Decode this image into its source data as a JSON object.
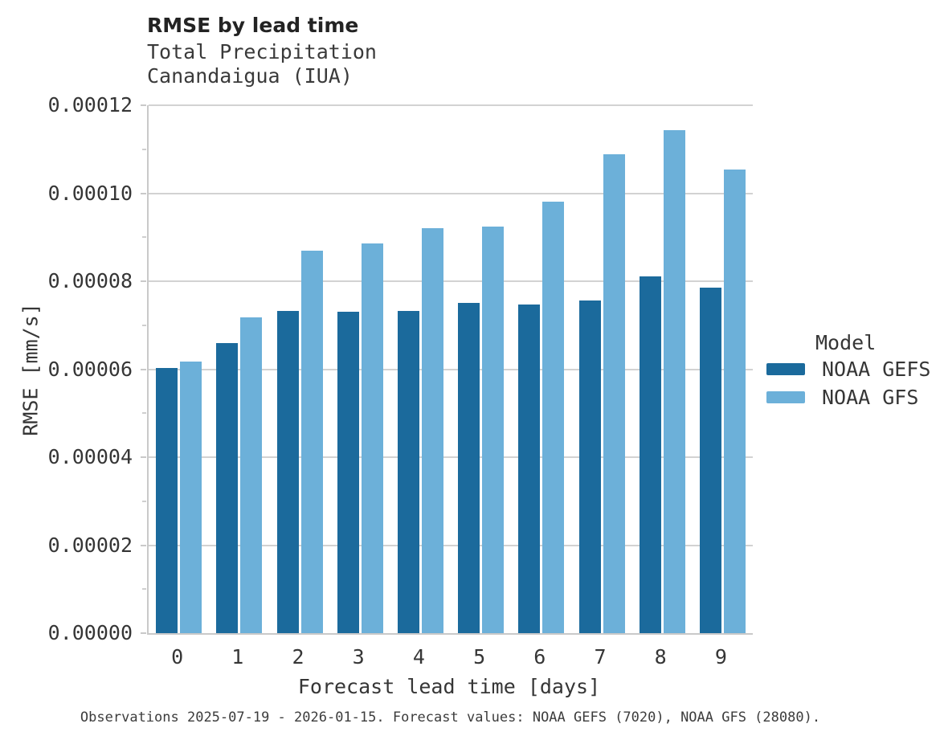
{
  "figure": {
    "title": "RMSE by lead time",
    "subtitle_line1": "Total Precipitation",
    "subtitle_line2": "Canandaigua (IUA)",
    "caption": "Observations 2025-07-19 - 2026-01-15. Forecast values: NOAA GEFS (7020), NOAA GFS (28080)."
  },
  "legend": {
    "title": "Model",
    "entries": [
      {
        "label": "NOAA GEFS",
        "color": "#1b6a9c"
      },
      {
        "label": "NOAA GFS",
        "color": "#6cb0d9"
      }
    ]
  },
  "colors": {
    "noaa_gefs": "#1b6a9c",
    "noaa_gfs": "#6cb0d9",
    "gridline": "#d2d2d2",
    "axis_line": "#c9c9c9",
    "text": "#363636",
    "title_text": "#232323"
  },
  "chart_data": {
    "type": "bar",
    "title": "RMSE by lead time",
    "subtitle": "Total Precipitation\nCanandaigua (IUA)",
    "xlabel": "Forecast lead time [days]",
    "ylabel": "RMSE [mm/s]",
    "categories": [
      "0",
      "1",
      "2",
      "3",
      "4",
      "5",
      "6",
      "7",
      "8",
      "9"
    ],
    "series": [
      {
        "name": "NOAA GEFS",
        "color": "#1b6a9c",
        "values": [
          6.03e-05,
          6.59e-05,
          7.33e-05,
          7.3e-05,
          7.32e-05,
          7.51e-05,
          7.47e-05,
          7.56e-05,
          8.11e-05,
          7.86e-05
        ]
      },
      {
        "name": "NOAA GFS",
        "color": "#6cb0d9",
        "values": [
          6.17e-05,
          7.17e-05,
          8.69e-05,
          8.86e-05,
          9.2e-05,
          9.25e-05,
          9.8e-05,
          0.0001088,
          0.0001144,
          0.0001053
        ]
      }
    ],
    "ylim": [
      0,
      0.00012
    ],
    "yticks": {
      "values": [
        0,
        2e-05,
        4e-05,
        6e-05,
        8e-05,
        0.0001,
        0.00012
      ],
      "labels": [
        "0.00000",
        "0.00002",
        "0.00004",
        "0.00006",
        "0.00008",
        "0.00010",
        "0.00012"
      ]
    },
    "grid": "horizontal major gridlines on; y-axis minor ticks at 0.00001 intervals",
    "legend_position": "right",
    "legend_title": "Model",
    "caption": "Observations 2025-07-19 - 2026-01-15. Forecast values: NOAA GEFS (7020), NOAA GFS (28080)."
  }
}
